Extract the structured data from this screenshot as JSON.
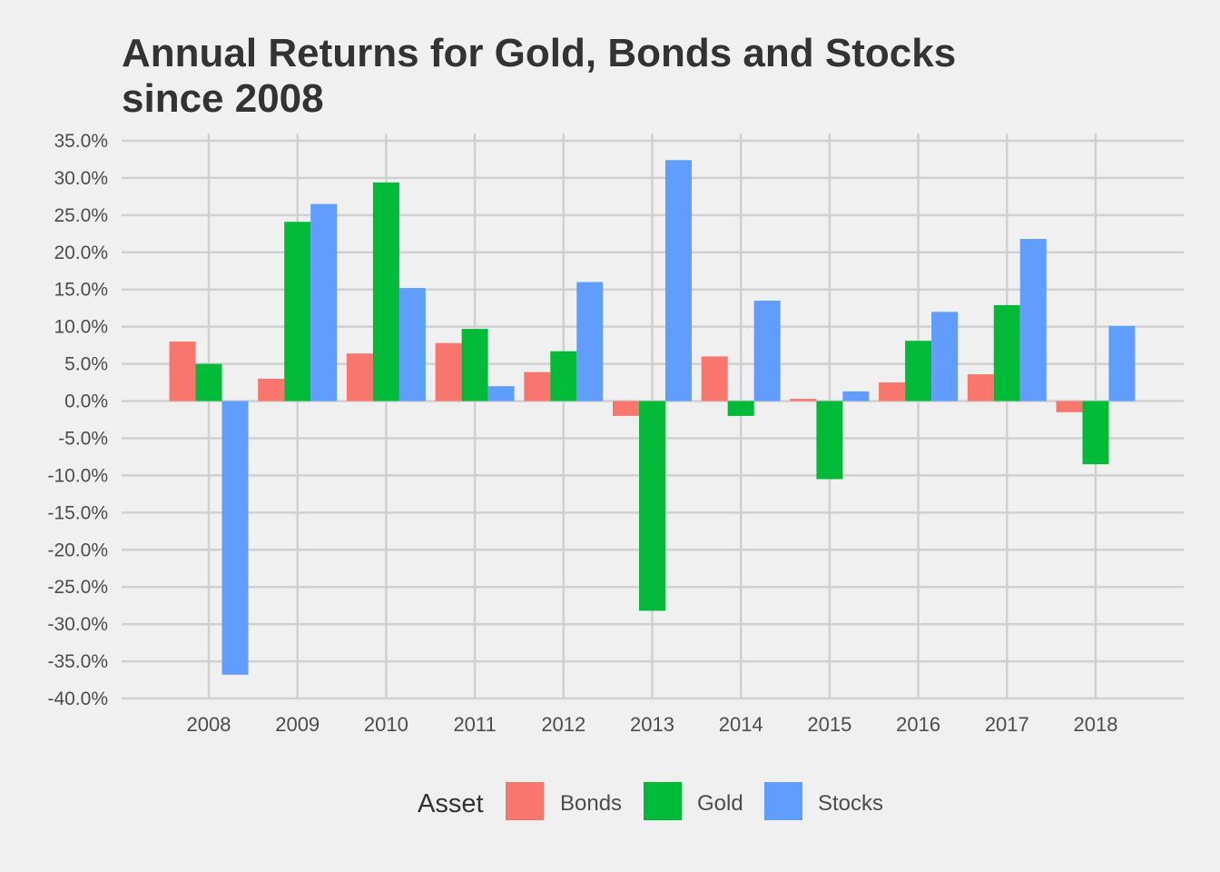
{
  "chart_data": {
    "type": "bar",
    "title": "Annual Returns for Gold, Bonds and Stocks since 2008",
    "title_lines": [
      "Annual Returns for Gold, Bonds and Stocks",
      "since 2008"
    ],
    "categories": [
      "2008",
      "2009",
      "2010",
      "2011",
      "2012",
      "2013",
      "2014",
      "2015",
      "2016",
      "2017",
      "2018"
    ],
    "series": [
      {
        "name": "Bonds",
        "color": "#f8766d",
        "values": [
          8.0,
          3.0,
          6.4,
          7.8,
          3.9,
          -2.0,
          6.0,
          0.3,
          2.5,
          3.6,
          -1.5
        ]
      },
      {
        "name": "Gold",
        "color": "#00ba38",
        "values": [
          5.0,
          24.1,
          29.4,
          9.7,
          6.7,
          -28.2,
          -2.0,
          -10.5,
          8.1,
          12.9,
          -8.5
        ]
      },
      {
        "name": "Stocks",
        "color": "#619cff",
        "values": [
          -36.8,
          26.5,
          15.2,
          2.0,
          16.0,
          32.4,
          13.5,
          1.3,
          12.0,
          21.8,
          10.1
        ]
      }
    ],
    "yticks": [
      "35.0%",
      "30.0%",
      "25.0%",
      "20.0%",
      "15.0%",
      "10.0%",
      "5.0%",
      "0.0%",
      "-5.0%",
      "-10.0%",
      "-15.0%",
      "-20.0%",
      "-25.0%",
      "-30.0%",
      "-35.0%",
      "-40.0%"
    ],
    "ylim": [
      -40,
      35
    ],
    "xlabel": "",
    "ylabel": "",
    "grid": true,
    "legend": {
      "title": "Asset",
      "position": "bottom"
    }
  }
}
